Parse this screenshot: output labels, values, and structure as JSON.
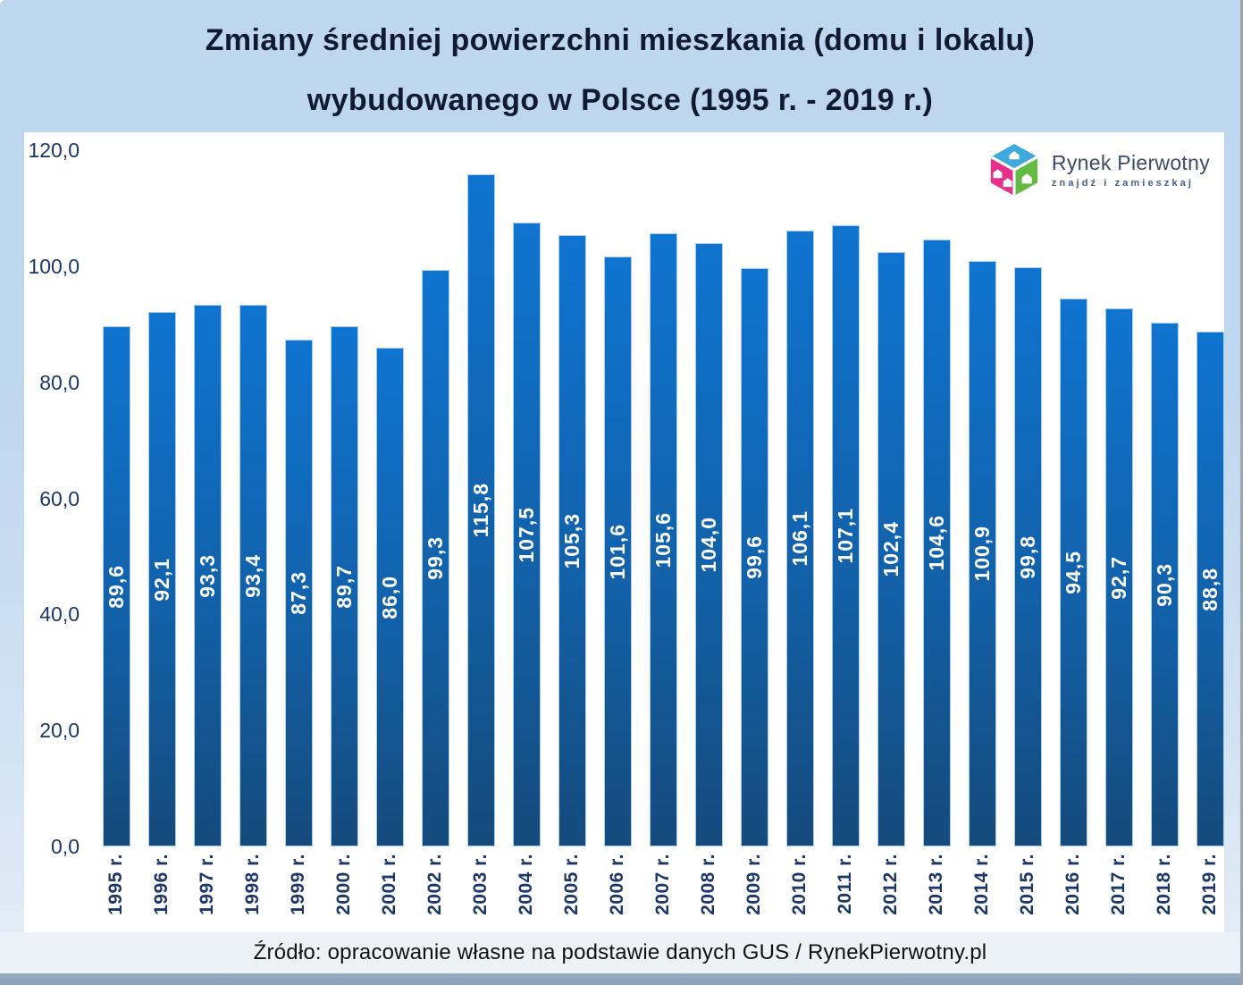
{
  "header": {
    "title_line1": "Zmiany średniej powierzchni mieszkania (domu i lokalu)",
    "title_line2": "wybudowanego w Polsce (1995 r. - 2019 r.)"
  },
  "logo": {
    "brand": "Rynek Pierwotny",
    "tagline": "znajdź i zamieszkaj",
    "cube": {
      "top_color": "#3fa9dc",
      "left_color": "#e8308a",
      "right_color": "#63bb46"
    }
  },
  "footer": {
    "source_note": "Źródło: opracowanie własne na podstawie danych GUS / RynekPierwotny.pl"
  },
  "colors": {
    "frame_bg": "#bed6ee",
    "panel_bg": "#ffffff",
    "title_text": "#101a30",
    "axis_text": "#1c3767",
    "footer_band_bg": "#edf2f9",
    "bottom_strip": "#93a9c1",
    "bar_top": "#0f74d0",
    "bar_mid": "#1261a9",
    "bar_bottom": "#154a7b",
    "bar_border": "#a9cdec",
    "bar_value_text": "#ffffff"
  },
  "chart_data": {
    "type": "bar",
    "title": "Zmiany średniej powierzchni mieszkania (domu i lokalu) wybudowanego w Polsce (1995 r. - 2019 r.)",
    "categories": [
      "1995 r.",
      "1996 r.",
      "1997 r.",
      "1998 r.",
      "1999 r.",
      "2000 r.",
      "2001 r.",
      "2002 r.",
      "2003 r.",
      "2004 r.",
      "2005 r.",
      "2006 r.",
      "2007 r.",
      "2008 r.",
      "2009 r.",
      "2010 r.",
      "2011 r.",
      "2012 r.",
      "2013 r.",
      "2014 r.",
      "2015 r.",
      "2016 r.",
      "2017 r.",
      "2018 r.",
      "2019 r."
    ],
    "values": [
      89.6,
      92.1,
      93.3,
      93.4,
      87.3,
      89.7,
      86.0,
      99.3,
      115.8,
      107.5,
      105.3,
      101.6,
      105.6,
      104.0,
      99.6,
      106.1,
      107.1,
      102.4,
      104.6,
      100.9,
      99.8,
      94.5,
      92.7,
      90.3,
      88.8
    ],
    "value_labels": [
      "89,6",
      "92,1",
      "93,3",
      "93,4",
      "87,3",
      "89,7",
      "86,0",
      "99,3",
      "115,8",
      "107,5",
      "105,3",
      "101,6",
      "105,6",
      "104,0",
      "99,6",
      "106,1",
      "107,1",
      "102,4",
      "104,6",
      "100,9",
      "99,8",
      "94,5",
      "92,7",
      "90,3",
      "88,8"
    ],
    "xlabel": "",
    "ylabel": "",
    "ylim": [
      0,
      120
    ],
    "yticks": [
      0,
      20,
      40,
      60,
      80,
      100,
      120
    ],
    "ytick_labels": [
      "0,0",
      "20,0",
      "40,0",
      "60,0",
      "80,0",
      "100,0",
      "120,0"
    ],
    "grid": false,
    "legend": null,
    "bar_orientation": "vertical",
    "value_label_position": "inside-center-rotated",
    "source": "Źródło: opracowanie własne na podstawie danych GUS / RynekPierwotny.pl"
  }
}
